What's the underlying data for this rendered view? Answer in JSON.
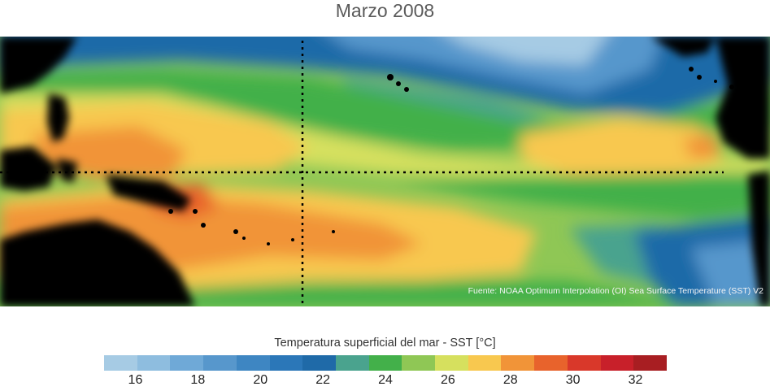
{
  "title": "Marzo 2008",
  "source_note": "Fuente: NOAA Optimum Interpolation (OI) Sea Surface Temperature (SST) V2",
  "colorbar": {
    "label": "Temperatura superficial del mar - SST  [°C]",
    "min": 15,
    "max": 33,
    "ticks": [
      "16",
      "18",
      "20",
      "22",
      "24",
      "26",
      "28",
      "30",
      "32"
    ],
    "colors": [
      "#a6cbe4",
      "#8ebddf",
      "#6fa9d7",
      "#5797cc",
      "#3e86c2",
      "#2b77b8",
      "#1f6aa8",
      "#4aa38e",
      "#43b04a",
      "#8fc755",
      "#d6e05e",
      "#f8c84f",
      "#f19438",
      "#e8632c",
      "#d9382a",
      "#c8202a",
      "#a81e22"
    ]
  },
  "map": {
    "region": "Pacífico ecuatorial",
    "land_color": "#000000",
    "grid_style": "dotted",
    "palette": {
      "cold_far": "#a6cbe4",
      "cold": "#5797cc",
      "cool": "#1f6aa8",
      "teal": "#4aa38e",
      "green": "#43b04a",
      "lightgreen": "#8fc755",
      "yellowgreen": "#d6e05e",
      "yellow": "#f8c84f",
      "orange": "#f19438",
      "red": "#e8632c"
    }
  }
}
